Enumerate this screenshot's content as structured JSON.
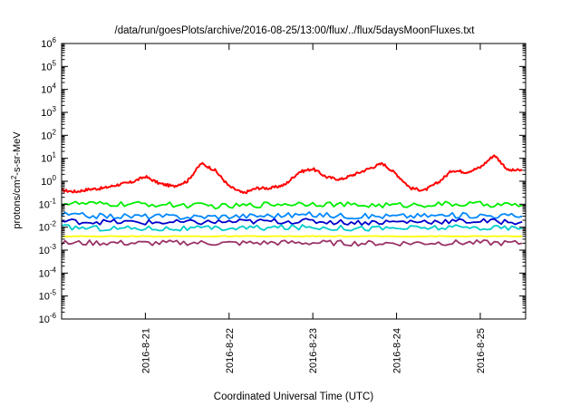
{
  "chart_data": {
    "type": "line",
    "title": "/data/run/goesPlots/archive/2016-08-25/13:00/flux/../flux/5daysMoonFluxes.txt",
    "xlabel": "Coordinated Universal Time (UTC)",
    "ylabel": {
      "base": "protons/cm",
      "sup": "2",
      "rest": "-s-sr-MeV"
    },
    "yscale": "log",
    "ylim": [
      1e-06,
      1000000.0
    ],
    "xlim": [
      "2016-08-20 00:00",
      "2016-08-25 13:00"
    ],
    "grid": false,
    "x_ticks": [
      "2016-8-21",
      "2016-8-22",
      "2016-8-23",
      "2016-8-24",
      "2016-8-25"
    ],
    "y_ticks": [
      {
        "base": "10",
        "exp": "6"
      },
      {
        "base": "10",
        "exp": "5"
      },
      {
        "base": "10",
        "exp": "4"
      },
      {
        "base": "10",
        "exp": "3"
      },
      {
        "base": "10",
        "exp": "2"
      },
      {
        "base": "10",
        "exp": "1"
      },
      {
        "base": "10",
        "exp": "0"
      },
      {
        "base": "10",
        "exp": "-1"
      },
      {
        "base": "10",
        "exp": "-2"
      },
      {
        "base": "10",
        "exp": "-3"
      },
      {
        "base": "10",
        "exp": "-4"
      },
      {
        "base": "10",
        "exp": "-5"
      },
      {
        "base": "10",
        "exp": "-6"
      }
    ],
    "series": [
      {
        "color": "#ff0000",
        "x": [
          "2016-08-20 00:00",
          "2016-08-20 04:00",
          "2016-08-20 08:00",
          "2016-08-20 12:00",
          "2016-08-20 16:00",
          "2016-08-20 20:00",
          "2016-08-21 00:00",
          "2016-08-21 04:00",
          "2016-08-21 08:00",
          "2016-08-21 12:00",
          "2016-08-21 16:00",
          "2016-08-21 20:00",
          "2016-08-22 00:00",
          "2016-08-22 04:00",
          "2016-08-22 08:00",
          "2016-08-22 12:00",
          "2016-08-22 16:00",
          "2016-08-22 20:00",
          "2016-08-23 00:00",
          "2016-08-23 04:00",
          "2016-08-23 08:00",
          "2016-08-23 12:00",
          "2016-08-23 16:00",
          "2016-08-23 20:00",
          "2016-08-24 00:00",
          "2016-08-24 04:00",
          "2016-08-24 08:00",
          "2016-08-24 12:00",
          "2016-08-24 16:00",
          "2016-08-24 20:00",
          "2016-08-25 00:00",
          "2016-08-25 04:00",
          "2016-08-25 08:00",
          "2016-08-25 12:00"
        ],
        "values": [
          0.4,
          0.35,
          0.45,
          0.5,
          0.7,
          0.9,
          1.6,
          0.8,
          0.6,
          1.0,
          6.0,
          3.0,
          0.6,
          0.3,
          0.5,
          0.5,
          0.7,
          2.5,
          3.5,
          1.5,
          1.2,
          2.0,
          3.5,
          6.0,
          2.0,
          0.5,
          0.4,
          0.9,
          3.0,
          2.5,
          4.0,
          14.0,
          3.0,
          3.0
        ]
      },
      {
        "color": "#00ee00",
        "x": [
          "2016-08-20 00:00",
          "2016-08-20 12:00",
          "2016-08-21 00:00",
          "2016-08-21 12:00",
          "2016-08-22 00:00",
          "2016-08-22 12:00",
          "2016-08-23 00:00",
          "2016-08-23 12:00",
          "2016-08-24 00:00",
          "2016-08-24 12:00",
          "2016-08-25 00:00",
          "2016-08-25 12:00"
        ],
        "values": [
          0.11,
          0.1,
          0.1,
          0.09,
          0.08,
          0.1,
          0.11,
          0.09,
          0.09,
          0.1,
          0.1,
          0.09
        ]
      },
      {
        "color": "#0088ff",
        "x": [
          "2016-08-20 00:00",
          "2016-08-20 12:00",
          "2016-08-21 00:00",
          "2016-08-21 12:00",
          "2016-08-22 00:00",
          "2016-08-22 12:00",
          "2016-08-23 00:00",
          "2016-08-23 12:00",
          "2016-08-24 00:00",
          "2016-08-24 12:00",
          "2016-08-25 00:00",
          "2016-08-25 12:00"
        ],
        "values": [
          0.035,
          0.03,
          0.03,
          0.028,
          0.03,
          0.032,
          0.035,
          0.03,
          0.03,
          0.032,
          0.033,
          0.03
        ]
      },
      {
        "color": "#0000cc",
        "x": [
          "2016-08-20 00:00",
          "2016-08-20 12:00",
          "2016-08-21 00:00",
          "2016-08-21 12:00",
          "2016-08-22 00:00",
          "2016-08-22 12:00",
          "2016-08-23 00:00",
          "2016-08-23 12:00",
          "2016-08-24 00:00",
          "2016-08-24 12:00",
          "2016-08-25 00:00",
          "2016-08-25 12:00"
        ],
        "values": [
          0.018,
          0.017,
          0.016,
          0.016,
          0.017,
          0.018,
          0.018,
          0.016,
          0.017,
          0.018,
          0.018,
          0.017
        ]
      },
      {
        "color": "#00cccc",
        "x": [
          "2016-08-20 00:00",
          "2016-08-20 12:00",
          "2016-08-21 00:00",
          "2016-08-21 12:00",
          "2016-08-22 00:00",
          "2016-08-22 12:00",
          "2016-08-23 00:00",
          "2016-08-23 12:00",
          "2016-08-24 00:00",
          "2016-08-24 12:00",
          "2016-08-25 00:00",
          "2016-08-25 12:00"
        ],
        "values": [
          0.01,
          0.009,
          0.009,
          0.0085,
          0.009,
          0.0095,
          0.01,
          0.009,
          0.009,
          0.0095,
          0.0095,
          0.009
        ]
      },
      {
        "color": "#ffff00",
        "x": [
          "2016-08-20 00:00",
          "2016-08-20 12:00",
          "2016-08-21 00:00",
          "2016-08-21 12:00",
          "2016-08-22 00:00",
          "2016-08-22 12:00",
          "2016-08-23 00:00",
          "2016-08-23 12:00",
          "2016-08-24 00:00",
          "2016-08-24 12:00",
          "2016-08-25 00:00",
          "2016-08-25 12:00"
        ],
        "values": [
          0.004,
          0.004,
          0.004,
          0.004,
          0.004,
          0.004,
          0.004,
          0.004,
          0.004,
          0.004,
          0.004,
          0.004
        ]
      },
      {
        "color": "#993366",
        "x": [
          "2016-08-20 00:00",
          "2016-08-20 12:00",
          "2016-08-21 00:00",
          "2016-08-21 12:00",
          "2016-08-22 00:00",
          "2016-08-22 12:00",
          "2016-08-23 00:00",
          "2016-08-23 12:00",
          "2016-08-24 00:00",
          "2016-08-24 12:00",
          "2016-08-25 00:00",
          "2016-08-25 12:00"
        ],
        "values": [
          0.002,
          0.0021,
          0.002,
          0.0021,
          0.002,
          0.0021,
          0.0021,
          0.002,
          0.002,
          0.0021,
          0.0021,
          0.002
        ]
      }
    ]
  }
}
